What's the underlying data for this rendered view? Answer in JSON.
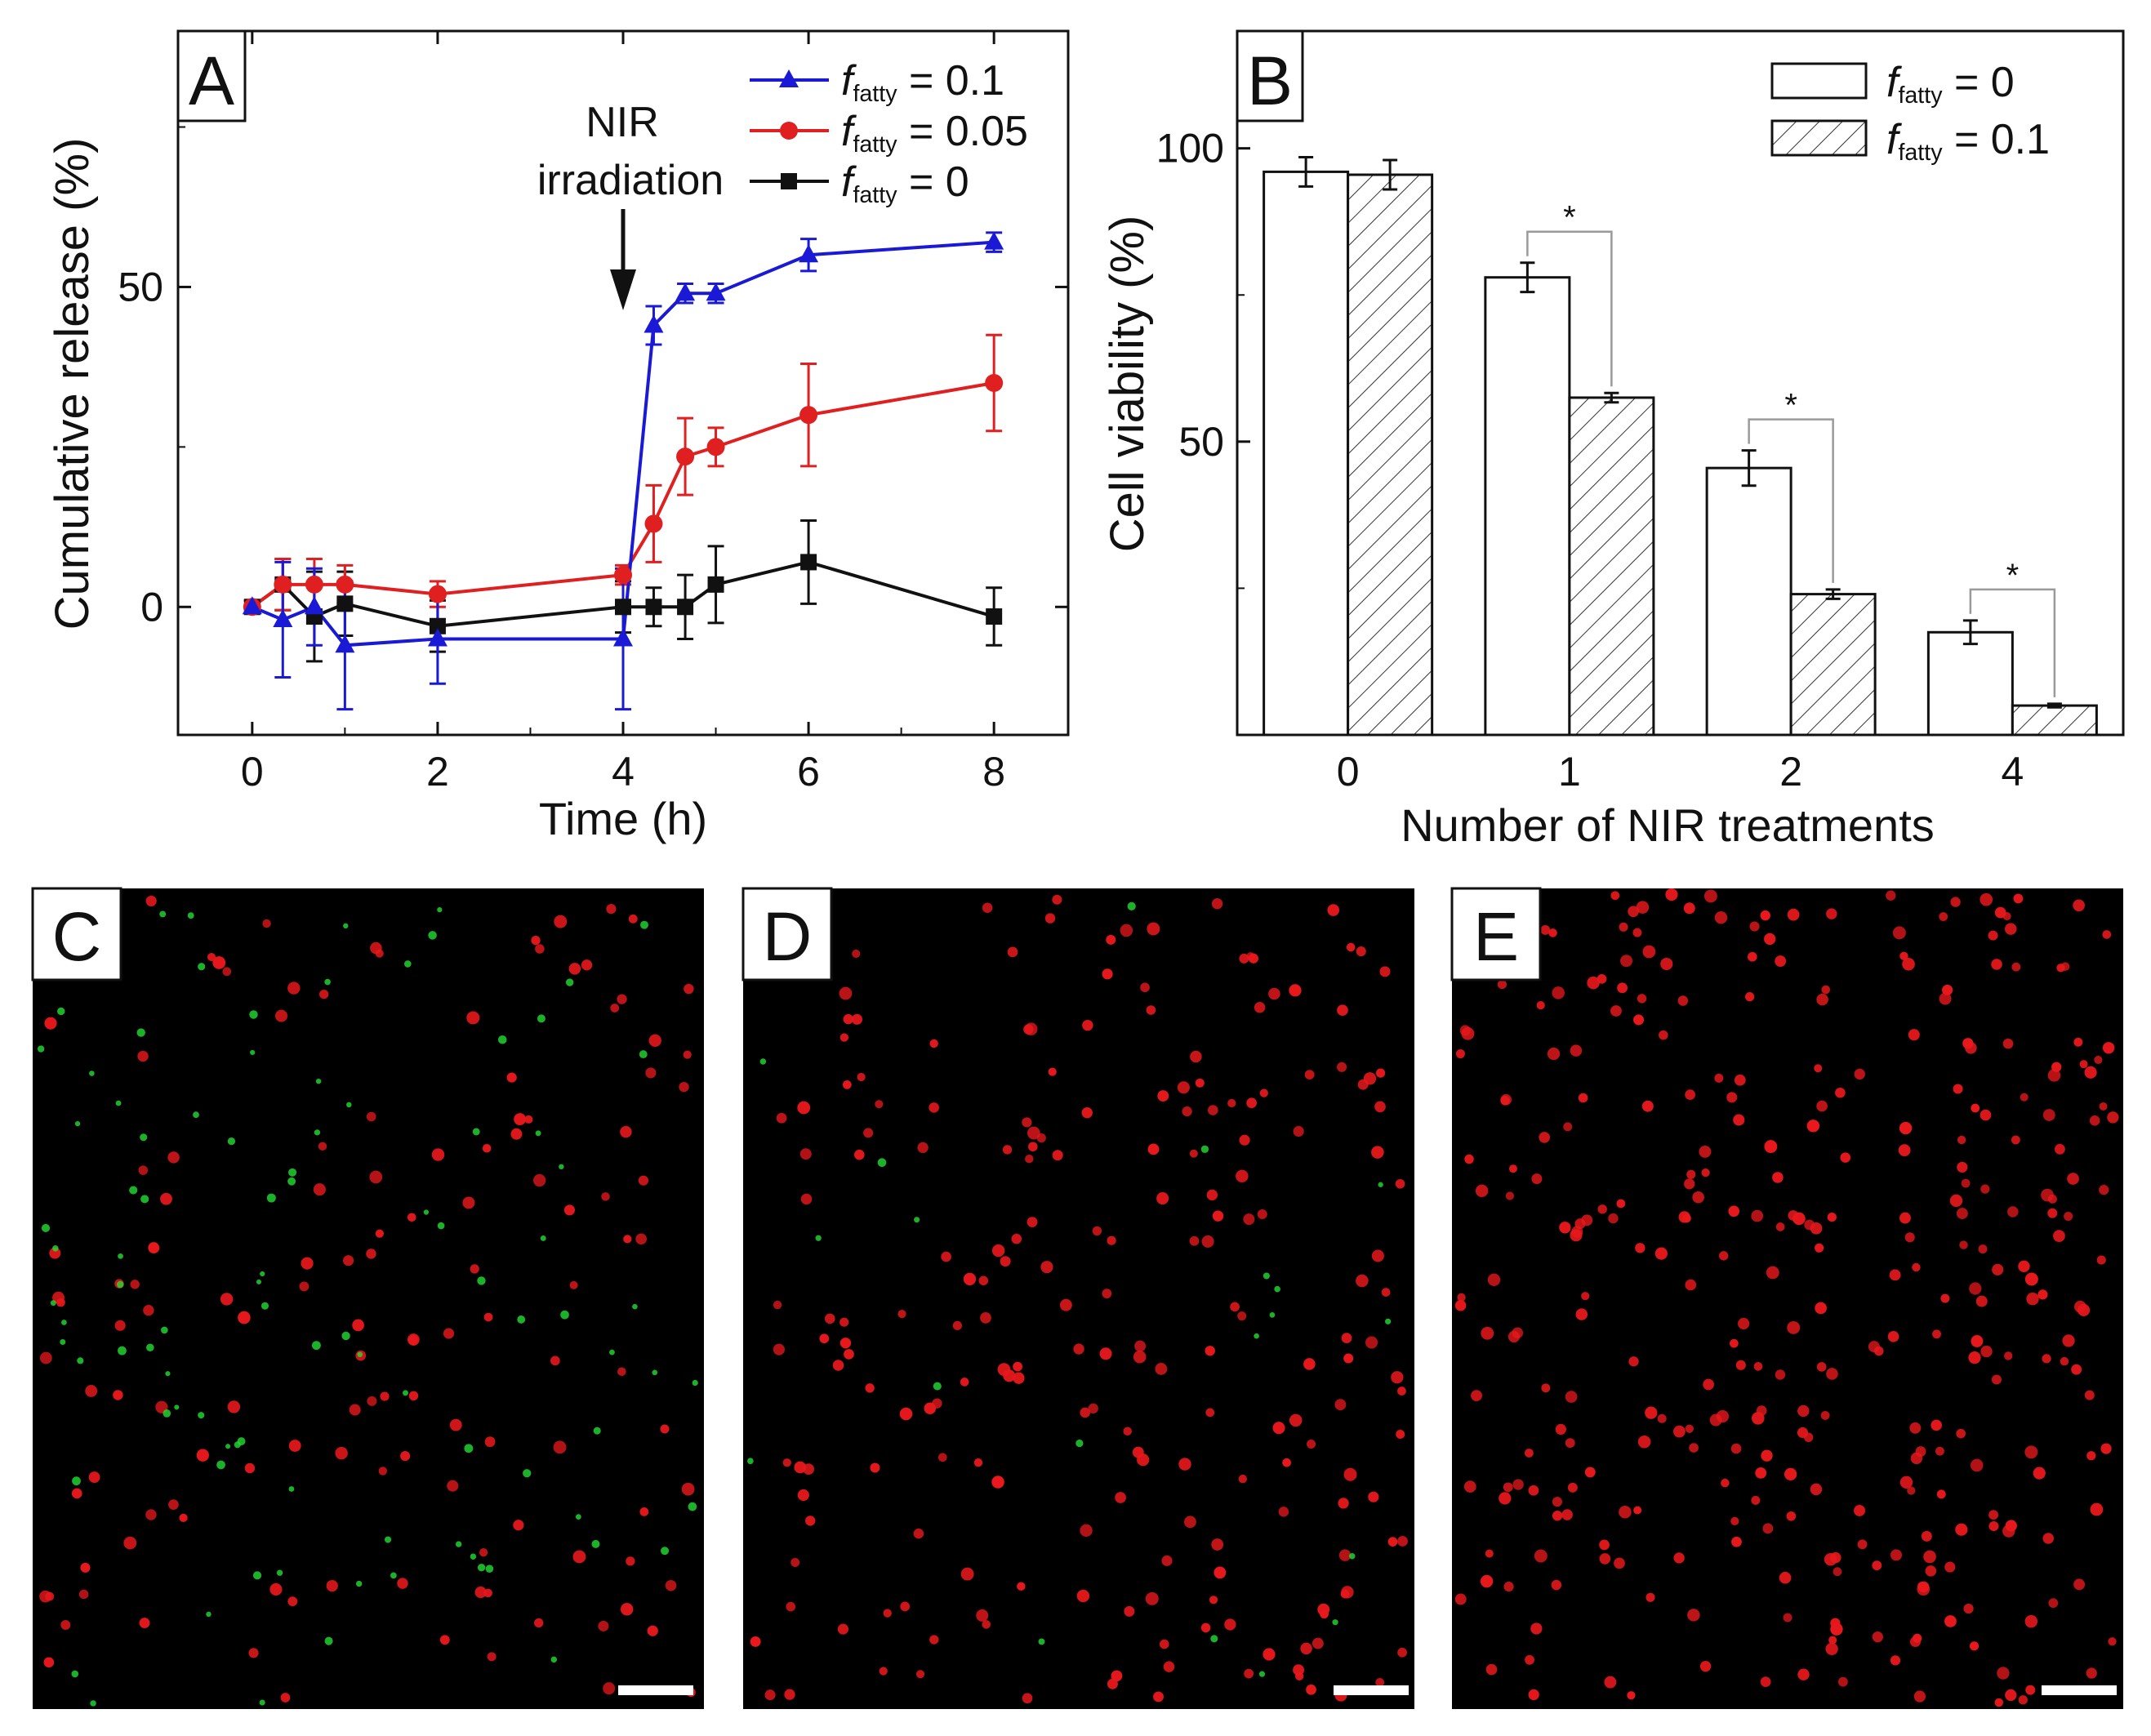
{
  "colors": {
    "blue": "#1a1ad6",
    "red": "#e02020",
    "black": "#111111",
    "cell_red": "#e8181c",
    "cell_green": "#22dd33",
    "bracket": "#9a9a9a"
  },
  "panel_labels": {
    "a": "A",
    "b": "B",
    "c": "C",
    "d": "D",
    "e": "E"
  },
  "legend_common": {
    "f": "f",
    "sub": "fatty"
  },
  "chart_data": [
    {
      "id": "A",
      "type": "line",
      "xlabel": "Time (h)",
      "ylabel": "Cumulative release (%)",
      "xlim": [
        -0.8,
        8.8
      ],
      "ylim": [
        -20,
        90
      ],
      "xticks": [
        0,
        2,
        4,
        6,
        8
      ],
      "yticks": [
        0,
        50
      ],
      "annotation": {
        "line1": "NIR",
        "line2": "irradiation",
        "arrow_x": 4.0
      },
      "x": [
        0,
        0.33,
        0.67,
        1,
        2,
        4,
        4.33,
        4.67,
        5,
        6,
        8
      ],
      "series": [
        {
          "name": " = 0.1",
          "color": "#1a1ad6",
          "marker": "triangle",
          "values": [
            0,
            -2,
            0,
            -6,
            -5,
            -5,
            44,
            49,
            49,
            55,
            57
          ],
          "errors": [
            1,
            9,
            6,
            10,
            7,
            11,
            3,
            1.5,
            1.5,
            2.5,
            1.5
          ]
        },
        {
          "name": " = 0.05",
          "color": "#e02020",
          "marker": "circle",
          "values": [
            0,
            3.5,
            3.5,
            3.5,
            2,
            5,
            13,
            23.5,
            25,
            30,
            35
          ],
          "errors": [
            1,
            4,
            4,
            3,
            2,
            1.5,
            6,
            6,
            3,
            8,
            7.5
          ]
        },
        {
          "name": " = 0",
          "color": "#111111",
          "marker": "square",
          "values": [
            0,
            3.5,
            -1.5,
            0.5,
            -3,
            0,
            0,
            0,
            3.5,
            7,
            -1.5
          ],
          "errors": [
            1,
            4,
            7,
            5,
            4,
            4,
            3,
            5,
            6,
            6.5,
            4.5
          ]
        }
      ]
    },
    {
      "id": "B",
      "type": "bar",
      "xlabel": "Number of NIR treatments",
      "ylabel": "Cell viability (%)",
      "ylim": [
        0,
        120
      ],
      "yticks": [
        50,
        100
      ],
      "categories": [
        "0",
        "1",
        "2",
        "4"
      ],
      "series": [
        {
          "name": " = 0",
          "pattern": "open",
          "values": [
            96,
            78,
            45.5,
            17.5
          ],
          "errors": [
            2.5,
            2.5,
            3,
            2
          ]
        },
        {
          "name": " = 0.1",
          "pattern": "hatched",
          "values": [
            95.5,
            57.5,
            24,
            5
          ],
          "errors": [
            2.5,
            0.8,
            0.8,
            0.3
          ]
        }
      ],
      "significance": [
        "*",
        "*",
        "*"
      ]
    }
  ],
  "micrographs": [
    {
      "id": "C",
      "red_cells": 130,
      "green_cells": 95
    },
    {
      "id": "D",
      "red_cells": 210,
      "green_cells": 20
    },
    {
      "id": "E",
      "red_cells": 330,
      "green_cells": 0
    }
  ]
}
